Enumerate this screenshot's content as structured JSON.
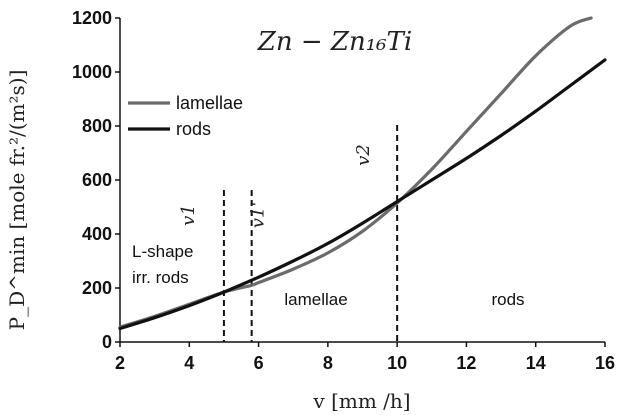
{
  "chart_data": {
    "type": "line",
    "title": "Zn − Zn₁₆Ti",
    "xlabel": "v [mm /h]",
    "ylabel": "P_D^min [mole fr.²/(m²s)]",
    "xlim": [
      2,
      16
    ],
    "ylim": [
      0,
      1200
    ],
    "xticks": [
      2,
      4,
      6,
      8,
      10,
      12,
      14,
      16
    ],
    "yticks": [
      0,
      200,
      400,
      600,
      800,
      1000,
      1200
    ],
    "grid": false,
    "legend_position": "top-left",
    "series": [
      {
        "name": "lamellae",
        "color": "#6b6b6b",
        "x": [
          2,
          3,
          4,
          5,
          5.8,
          6,
          7,
          8,
          9,
          10,
          11,
          12,
          13,
          14,
          15,
          15.6
        ],
        "y": [
          55,
          95,
          140,
          185,
          210,
          220,
          270,
          330,
          410,
          515,
          640,
          780,
          920,
          1060,
          1170,
          1200
        ]
      },
      {
        "name": "rods",
        "color": "#111111",
        "x": [
          2,
          3,
          4,
          5,
          6,
          7,
          8,
          9,
          10,
          11,
          12,
          13,
          14,
          15,
          16
        ],
        "y": [
          50,
          90,
          135,
          185,
          240,
          300,
          365,
          440,
          520,
          600,
          680,
          765,
          855,
          950,
          1045
        ]
      }
    ],
    "vlines": [
      {
        "x": 5.0,
        "label": "v1"
      },
      {
        "x": 5.8,
        "label": "v1'"
      },
      {
        "x": 10.0,
        "label": "v2"
      }
    ],
    "annotations": [
      {
        "text": "L-shape"
      },
      {
        "text": "irr. rods"
      },
      {
        "text": "lamellae"
      },
      {
        "text": "rods"
      }
    ]
  }
}
